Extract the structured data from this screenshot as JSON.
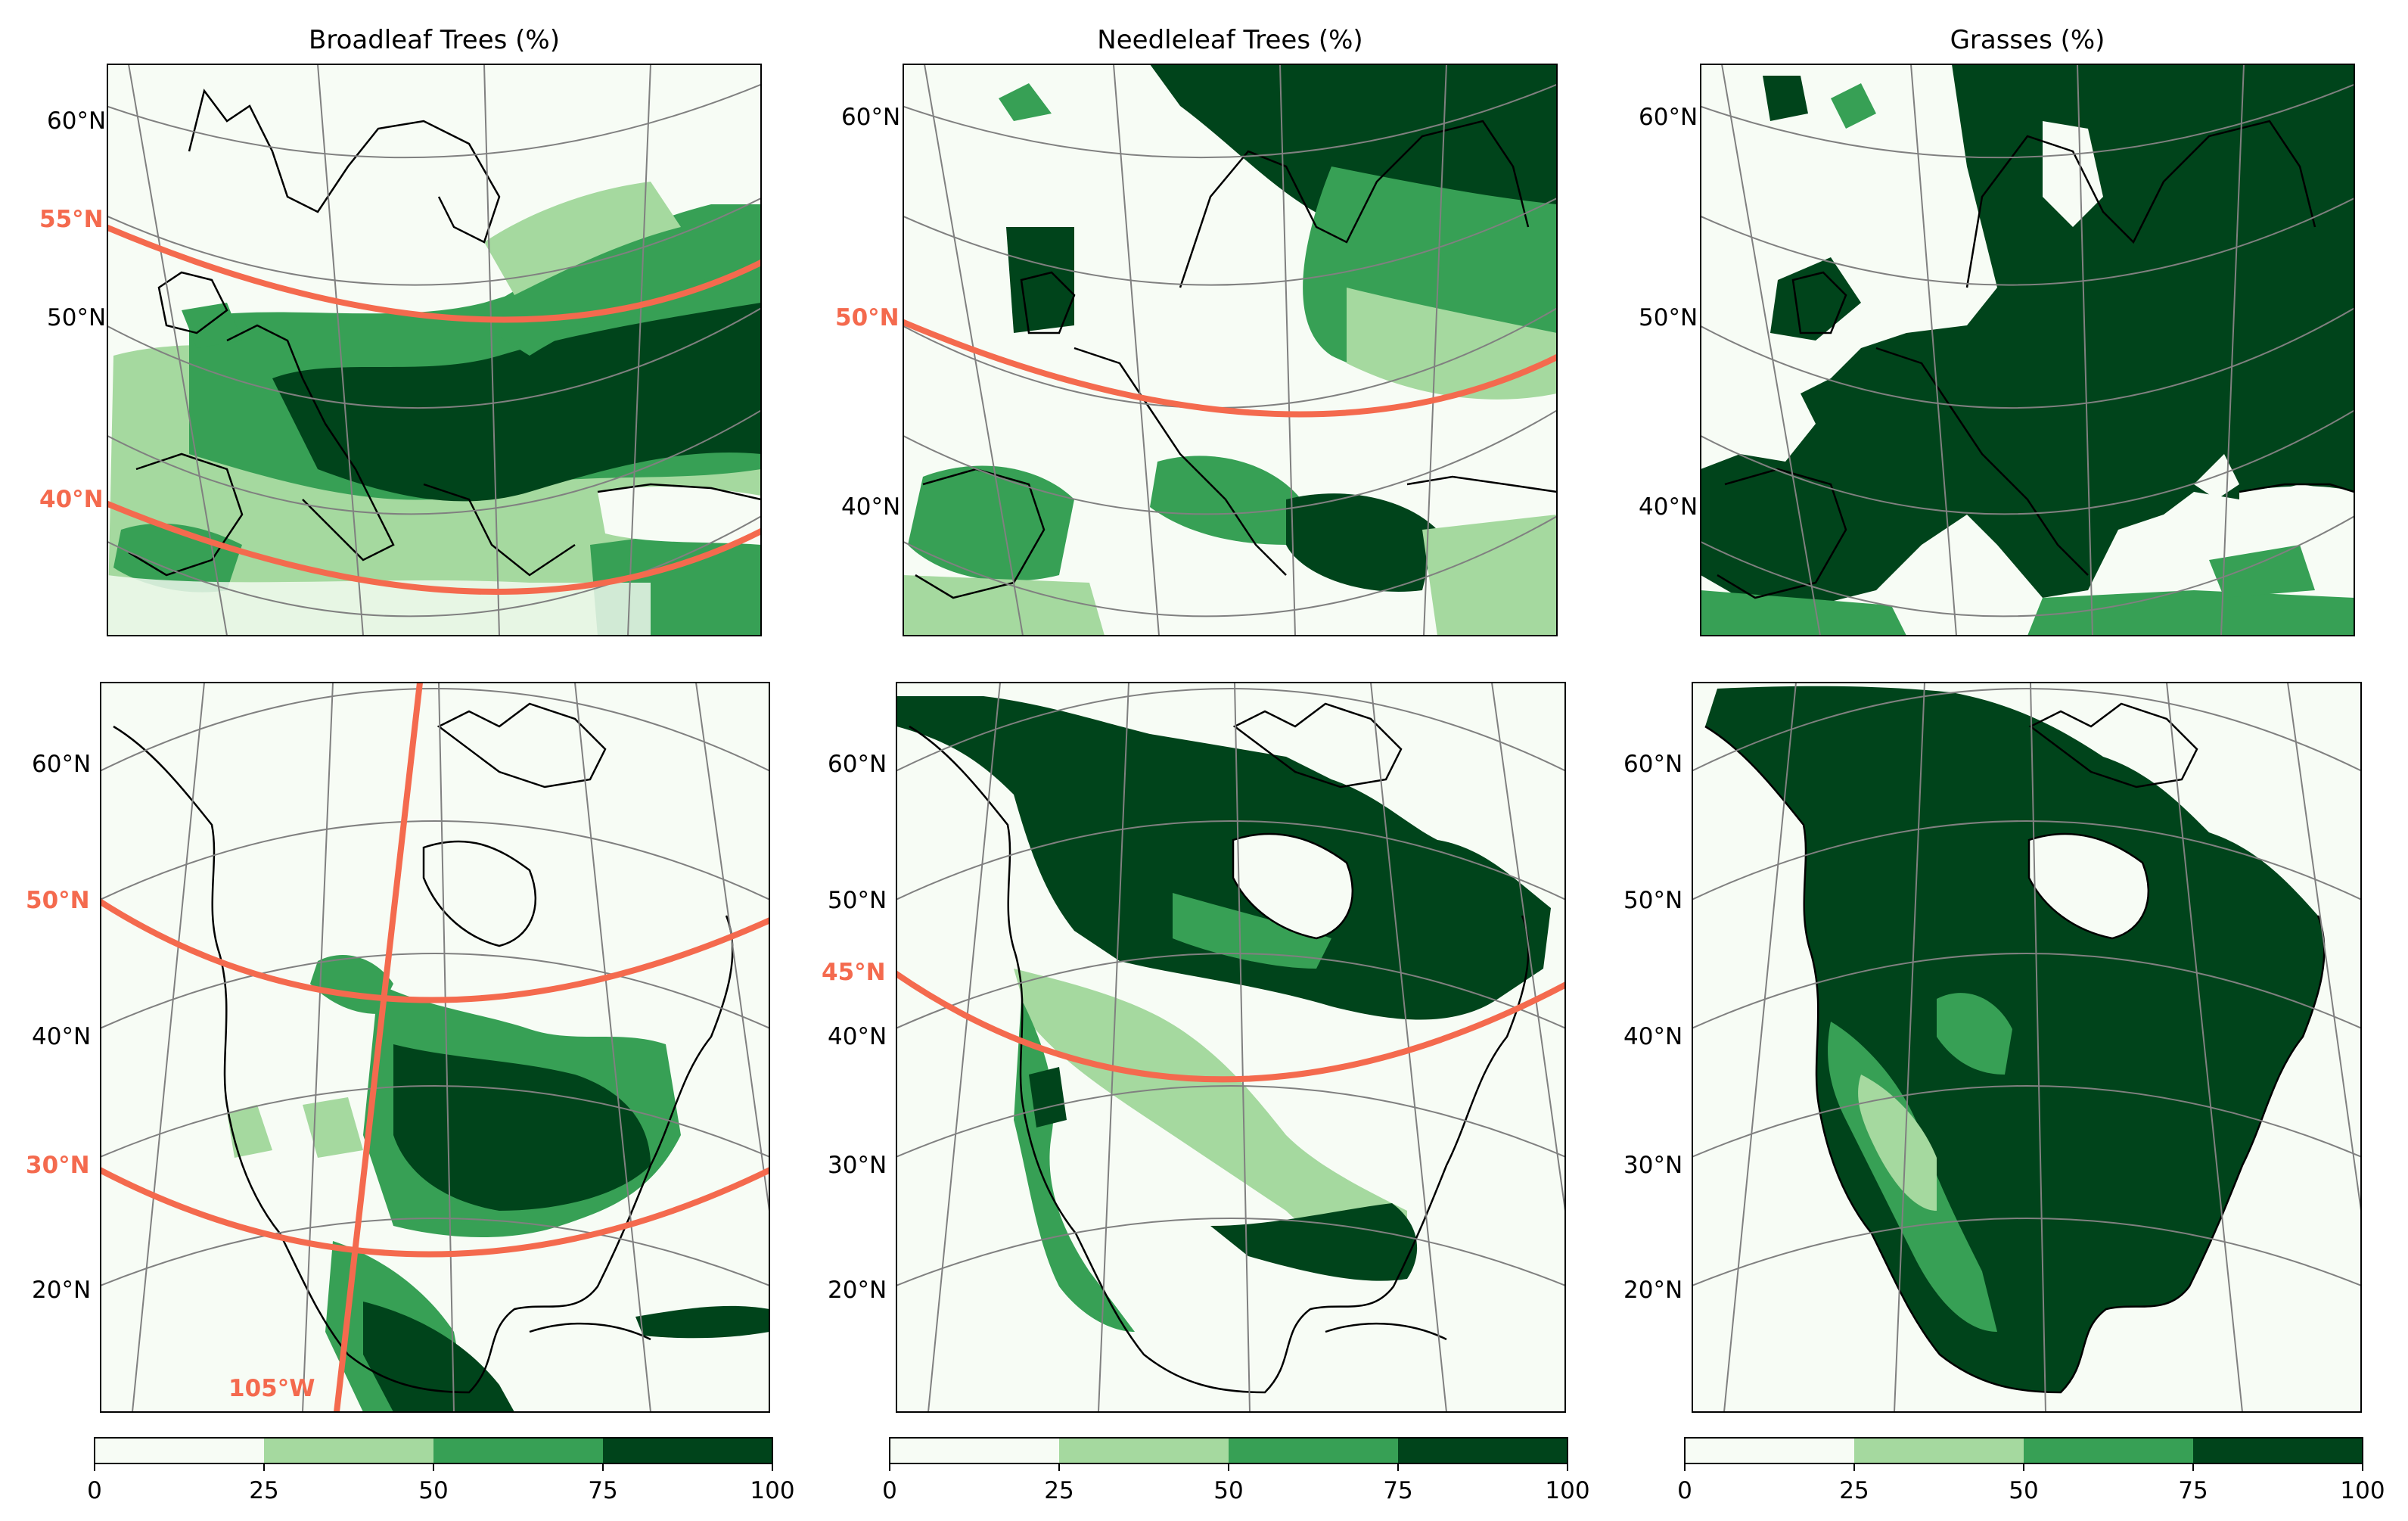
{
  "figure": {
    "colorbar": {
      "ticks": [
        "0",
        "25",
        "50",
        "75",
        "100"
      ],
      "bins": [
        {
          "range": "0-25",
          "color": "#f7fcf5"
        },
        {
          "range": "25-50",
          "color": "#a5d99f"
        },
        {
          "range": "50-75",
          "color": "#37a055"
        },
        {
          "range": "75-100",
          "color": "#00441b"
        }
      ]
    },
    "highlight_color": "#f46a4e",
    "gridline_color": "#808080",
    "panels": [
      {
        "title": "Broadleaf Trees (%)",
        "region": "Europe",
        "lat_labels": [
          "60°N",
          "50°N"
        ],
        "highlighted_lats": [
          "55°N",
          "40°N"
        ],
        "highlighted_lons": []
      },
      {
        "title": "Needleleaf Trees (%)",
        "region": "Europe",
        "lat_labels": [
          "60°N",
          "40°N"
        ],
        "highlighted_lats": [
          "50°N"
        ],
        "highlighted_lons": []
      },
      {
        "title": "Grasses (%)",
        "region": "Europe",
        "lat_labels": [
          "60°N",
          "50°N",
          "40°N"
        ],
        "highlighted_lats": [],
        "highlighted_lons": []
      },
      {
        "title": "",
        "region": "North America",
        "lat_labels": [
          "60°N",
          "40°N",
          "20°N"
        ],
        "highlighted_lats": [
          "50°N",
          "30°N"
        ],
        "highlighted_lons": [
          "105°W"
        ]
      },
      {
        "title": "",
        "region": "North America",
        "lat_labels": [
          "60°N",
          "50°N",
          "40°N",
          "30°N",
          "20°N"
        ],
        "highlighted_lats": [
          "45°N"
        ],
        "highlighted_lons": []
      },
      {
        "title": "",
        "region": "North America",
        "lat_labels": [
          "60°N",
          "50°N",
          "40°N",
          "30°N",
          "20°N"
        ],
        "highlighted_lats": [],
        "highlighted_lons": []
      }
    ]
  }
}
